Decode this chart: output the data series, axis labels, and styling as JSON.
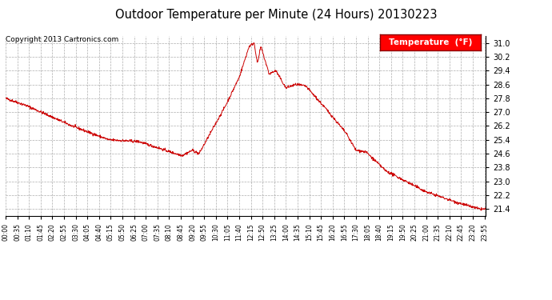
{
  "title": "Outdoor Temperature per Minute (24 Hours) 20130223",
  "copyright": "Copyright 2013 Cartronics.com",
  "legend_label": "Temperature  (°F)",
  "line_color": "#cc0000",
  "background_color": "#ffffff",
  "plot_background": "#ffffff",
  "grid_color": "#999999",
  "ylim": [
    21.0,
    31.4
  ],
  "yticks": [
    21.4,
    22.2,
    23.0,
    23.8,
    24.6,
    25.4,
    26.2,
    27.0,
    27.8,
    28.6,
    29.4,
    30.2,
    31.0
  ],
  "x_labels": [
    "00:00",
    "00:35",
    "01:10",
    "01:45",
    "02:20",
    "02:55",
    "03:30",
    "04:05",
    "04:40",
    "05:15",
    "05:50",
    "06:25",
    "07:00",
    "07:35",
    "08:10",
    "08:45",
    "09:20",
    "09:55",
    "10:30",
    "11:05",
    "11:40",
    "12:15",
    "12:50",
    "13:25",
    "14:00",
    "14:35",
    "15:10",
    "15:45",
    "16:20",
    "16:55",
    "17:30",
    "18:05",
    "18:40",
    "19:15",
    "19:50",
    "20:25",
    "21:00",
    "21:35",
    "22:10",
    "22:45",
    "23:20",
    "23:55"
  ]
}
